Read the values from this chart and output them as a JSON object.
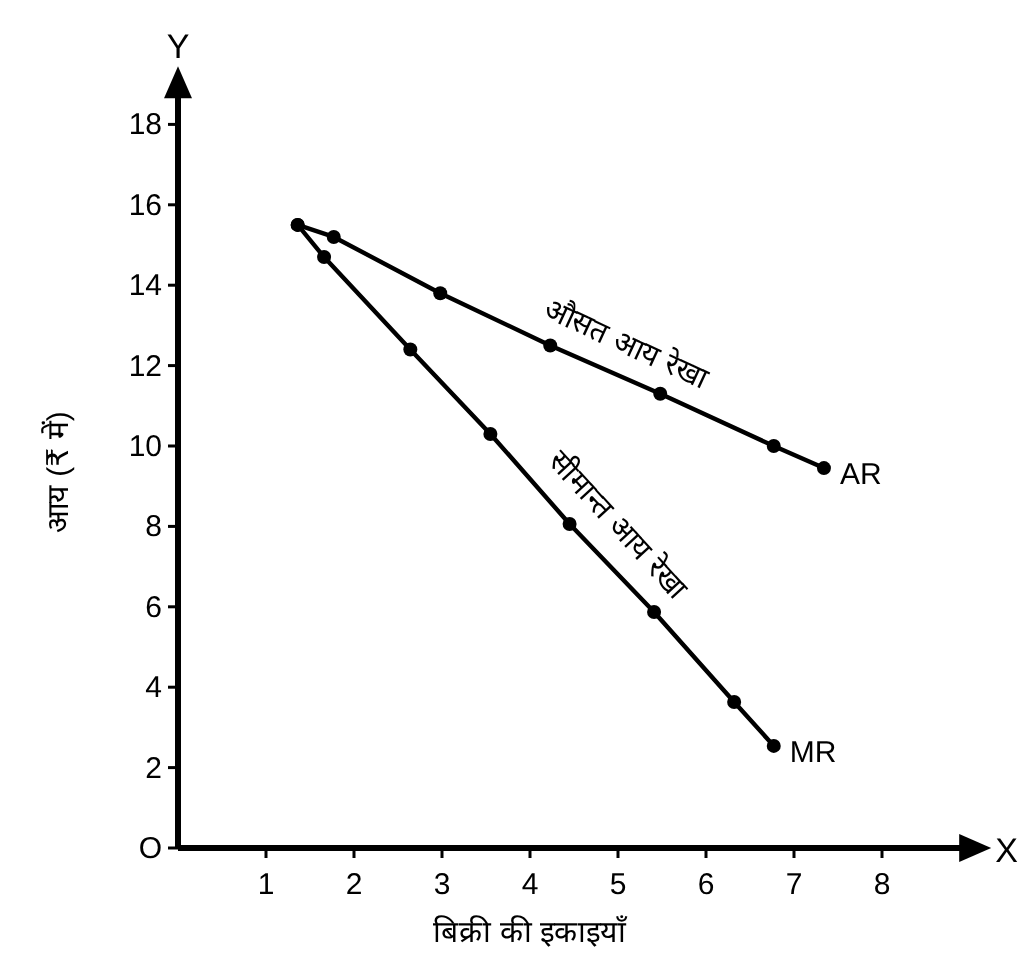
{
  "chart_data": {
    "type": "line",
    "xlabel": "बिक्री की इकाइयाँ",
    "ylabel": "आय (₹ में)",
    "xlim": [
      0,
      8.9
    ],
    "ylim": [
      0,
      18.7
    ],
    "xticks": [
      1,
      2,
      3,
      4,
      5,
      6,
      7,
      8
    ],
    "yticks": [
      {
        "value": 0,
        "label": "O"
      },
      2,
      4,
      6,
      8,
      10,
      12,
      14,
      16,
      18
    ],
    "marker": "circle",
    "legend": false,
    "grid": false,
    "series": [
      {
        "name": "AR",
        "color": "#000000",
        "x": [
          1.36,
          1.77,
          2.98,
          4.23,
          5.48,
          6.77,
          7.34
        ],
        "values": [
          15.5,
          15.2,
          13.8,
          12.5,
          11.3,
          10.0,
          9.45
        ]
      },
      {
        "name": "MR",
        "color": "#000000",
        "x": [
          1.36,
          1.66,
          2.64,
          3.55,
          4.45,
          5.41,
          6.32,
          6.77
        ],
        "values": [
          15.5,
          14.7,
          12.4,
          10.3,
          8.06,
          5.87,
          3.63,
          2.54
        ]
      }
    ],
    "annotations": [
      "औसत आय रेखा",
      "सीमान्त आय रेखा",
      "Y",
      "X"
    ]
  }
}
